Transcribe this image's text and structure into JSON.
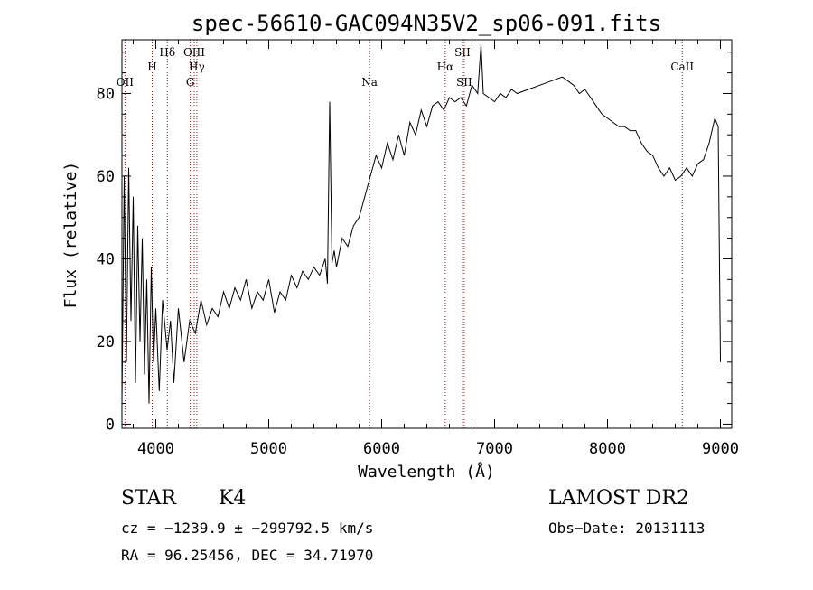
{
  "chart_data": {
    "type": "line",
    "title": "spec-56610-GAC094N35V2_sp06-091.fits",
    "xlabel": "Wavelength (Å)",
    "ylabel": "Flux (relative)",
    "xlim": [
      3700,
      9100
    ],
    "ylim": [
      -1,
      93
    ],
    "xticks": [
      4000,
      5000,
      6000,
      7000,
      8000,
      9000
    ],
    "yticks": [
      0,
      20,
      40,
      60,
      80
    ],
    "grid": false,
    "series": [
      {
        "x": [
          3700,
          3720,
          3740,
          3760,
          3780,
          3800,
          3820,
          3840,
          3860,
          3880,
          3900,
          3920,
          3940,
          3960,
          3980,
          4000,
          4030,
          4060,
          4100,
          4130,
          4160,
          4200,
          4250,
          4300,
          4350,
          4400,
          4450,
          4500,
          4550,
          4600,
          4650,
          4700,
          4750,
          4800,
          4850,
          4900,
          4950,
          5000,
          5050,
          5100,
          5150,
          5200,
          5250,
          5300,
          5350,
          5400,
          5450,
          5500,
          5520,
          5540,
          5560,
          5580,
          5600,
          5650,
          5700,
          5750,
          5800,
          5850,
          5900,
          5950,
          6000,
          6050,
          6100,
          6150,
          6200,
          6250,
          6300,
          6350,
          6400,
          6450,
          6500,
          6550,
          6600,
          6650,
          6700,
          6750,
          6800,
          6850,
          6880,
          6900,
          6950,
          7000,
          7050,
          7100,
          7150,
          7200,
          7300,
          7400,
          7500,
          7600,
          7650,
          7700,
          7750,
          7800,
          7850,
          7900,
          7950,
          8000,
          8050,
          8100,
          8150,
          8200,
          8250,
          8300,
          8350,
          8400,
          8450,
          8500,
          8550,
          8600,
          8650,
          8700,
          8750,
          8800,
          8850,
          8900,
          8950,
          8980,
          9000
        ],
        "y": [
          5,
          60,
          15,
          62,
          25,
          55,
          10,
          48,
          20,
          45,
          12,
          35,
          5,
          38,
          15,
          28,
          8,
          30,
          18,
          25,
          10,
          28,
          15,
          25,
          22,
          30,
          24,
          28,
          26,
          32,
          28,
          33,
          30,
          35,
          28,
          32,
          30,
          35,
          27,
          32,
          30,
          36,
          33,
          37,
          35,
          38,
          36,
          40,
          34,
          78,
          39,
          42,
          38,
          45,
          43,
          48,
          50,
          55,
          60,
          65,
          62,
          68,
          64,
          70,
          65,
          73,
          70,
          76,
          72,
          77,
          78,
          76,
          79,
          78,
          79,
          77,
          82,
          80,
          92,
          80,
          79,
          78,
          80,
          79,
          81,
          80,
          81,
          82,
          83,
          84,
          83,
          82,
          80,
          81,
          79,
          77,
          75,
          74,
          73,
          72,
          72,
          71,
          71,
          68,
          66,
          65,
          62,
          60,
          62,
          59,
          60,
          62,
          60,
          63,
          64,
          68,
          74,
          72,
          15
        ]
      }
    ],
    "lines": [
      {
        "name": "OII",
        "wl": 3727,
        "row": 3
      },
      {
        "name": "H",
        "wl": 3968,
        "row": 1
      },
      {
        "name": "Hδ",
        "wl": 4102,
        "row": 0
      },
      {
        "name": "G",
        "wl": 4305,
        "row": 3
      },
      {
        "name": "OIII",
        "wl": 4340,
        "row": 0
      },
      {
        "name": "Hγ",
        "wl": 4363,
        "row": 1
      },
      {
        "name": "Na",
        "wl": 5893,
        "row": 3
      },
      {
        "name": "Hα",
        "wl": 6563,
        "row": 1
      },
      {
        "name": "SII",
        "wl": 6716,
        "row": 0
      },
      {
        "name": "SII",
        "wl": 6731,
        "row": 3
      },
      {
        "name": "CaII",
        "wl": 8662,
        "row": 1
      }
    ]
  },
  "info": {
    "class_label": "STAR",
    "subclass": "K4",
    "survey": "LAMOST DR2",
    "cz": "cz = −1239.9 ± −299792.5 km/s",
    "obs_date": "Obs−Date: 20131113",
    "radec": "RA =  96.25456, DEC =  34.71970"
  }
}
